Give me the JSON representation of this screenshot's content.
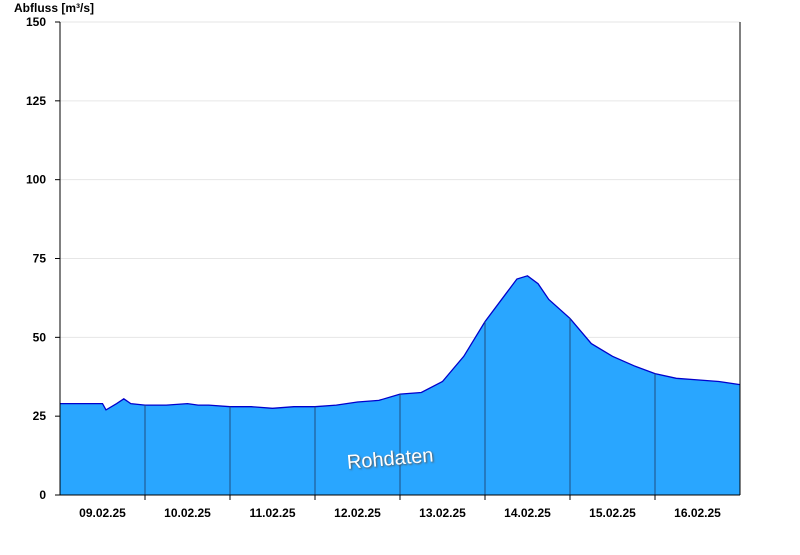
{
  "chart_data": {
    "type": "area",
    "ylabel": "Abfluss [m³/s]",
    "xlabel": "",
    "title": "",
    "ylim": [
      0,
      150
    ],
    "yticks": [
      0,
      25,
      50,
      75,
      100,
      125,
      150
    ],
    "x_day_labels": [
      "09.02.25",
      "10.02.25",
      "11.02.25",
      "12.02.25",
      "13.02.25",
      "14.02.25",
      "15.02.25",
      "16.02.25"
    ],
    "x_range": [
      "09.02.25 00:00",
      "17.02.25 00:00"
    ],
    "grid": true,
    "fill_color": "#29a6ff",
    "line_color": "#0000cc",
    "watermark": "Rohdaten",
    "x": [
      "09.02.25 00:00",
      "09.02.25 06:00",
      "09.02.25 12:00",
      "09.02.25 13:00",
      "09.02.25 16:00",
      "09.02.25 18:00",
      "09.02.25 20:00",
      "10.02.25 00:00",
      "10.02.25 06:00",
      "10.02.25 12:00",
      "10.02.25 15:00",
      "10.02.25 18:00",
      "11.02.25 00:00",
      "11.02.25 06:00",
      "11.02.25 12:00",
      "11.02.25 18:00",
      "12.02.25 00:00",
      "12.02.25 06:00",
      "12.02.25 12:00",
      "12.02.25 18:00",
      "13.02.25 00:00",
      "13.02.25 06:00",
      "13.02.25 12:00",
      "13.02.25 18:00",
      "14.02.25 00:00",
      "14.02.25 06:00",
      "14.02.25 09:00",
      "14.02.25 12:00",
      "14.02.25 15:00",
      "14.02.25 18:00",
      "15.02.25 00:00",
      "15.02.25 06:00",
      "15.02.25 12:00",
      "15.02.25 18:00",
      "16.02.25 00:00",
      "16.02.25 06:00",
      "16.02.25 12:00",
      "16.02.25 18:00",
      "17.02.25 00:00"
    ],
    "values": [
      29,
      29,
      29,
      27,
      29,
      30.5,
      29,
      28.5,
      28.5,
      29,
      28.5,
      28.5,
      28,
      28,
      27.5,
      28,
      28,
      28.5,
      29.5,
      30,
      32,
      32.5,
      36,
      44,
      55,
      64,
      68.5,
      69.5,
      67,
      62,
      56,
      48,
      44,
      41,
      38.5,
      37,
      36.5,
      36,
      35
    ]
  }
}
